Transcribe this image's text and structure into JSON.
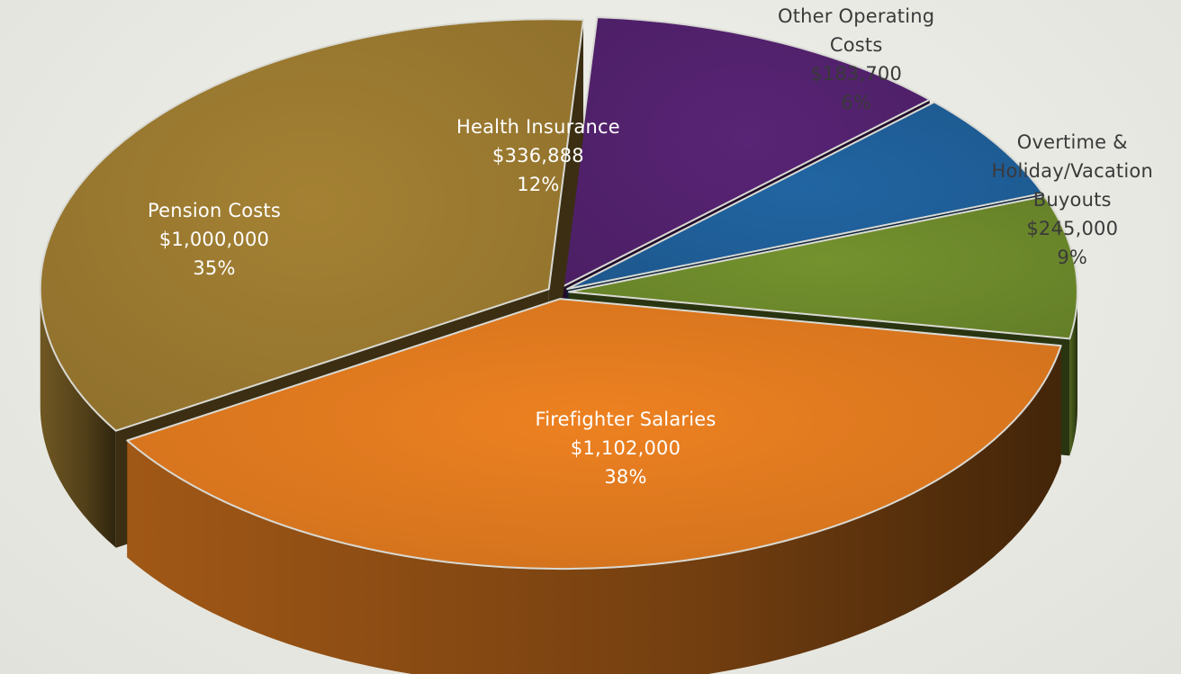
{
  "chart_data": {
    "type": "pie",
    "title": "",
    "slices": [
      {
        "name": "Firefighter Salaries",
        "label_lines": [
          "Firefighter Salaries"
        ],
        "value": 1102000,
        "value_text": "$1,102,000",
        "percent_text": "38%",
        "color": "#e07a1f",
        "label_placement": "inside"
      },
      {
        "name": "Pension Costs",
        "label_lines": [
          "Pension Costs"
        ],
        "value": 1000000,
        "value_text": "$1,000,000",
        "percent_text": "35%",
        "color": "#9b7a30",
        "label_placement": "inside"
      },
      {
        "name": "Health Insurance",
        "label_lines": [
          "Health Insurance"
        ],
        "value": 336888,
        "value_text": "$336,888",
        "percent_text": "12%",
        "color": "#53226e",
        "label_placement": "inside"
      },
      {
        "name": "Other Operating Costs",
        "label_lines": [
          "Other Operating",
          "Costs"
        ],
        "value": 183700,
        "value_text": "$183,700",
        "percent_text": "6%",
        "color": "#1f5f99",
        "label_placement": "outside"
      },
      {
        "name": "Overtime & Holiday/Vacation Buyouts",
        "label_lines": [
          "Overtime &",
          "Holiday/Vacation",
          "Buyouts"
        ],
        "value": 245000,
        "value_text": "$245,000",
        "percent_text": "9%",
        "color": "#6d8a2b",
        "label_placement": "outside"
      }
    ]
  }
}
